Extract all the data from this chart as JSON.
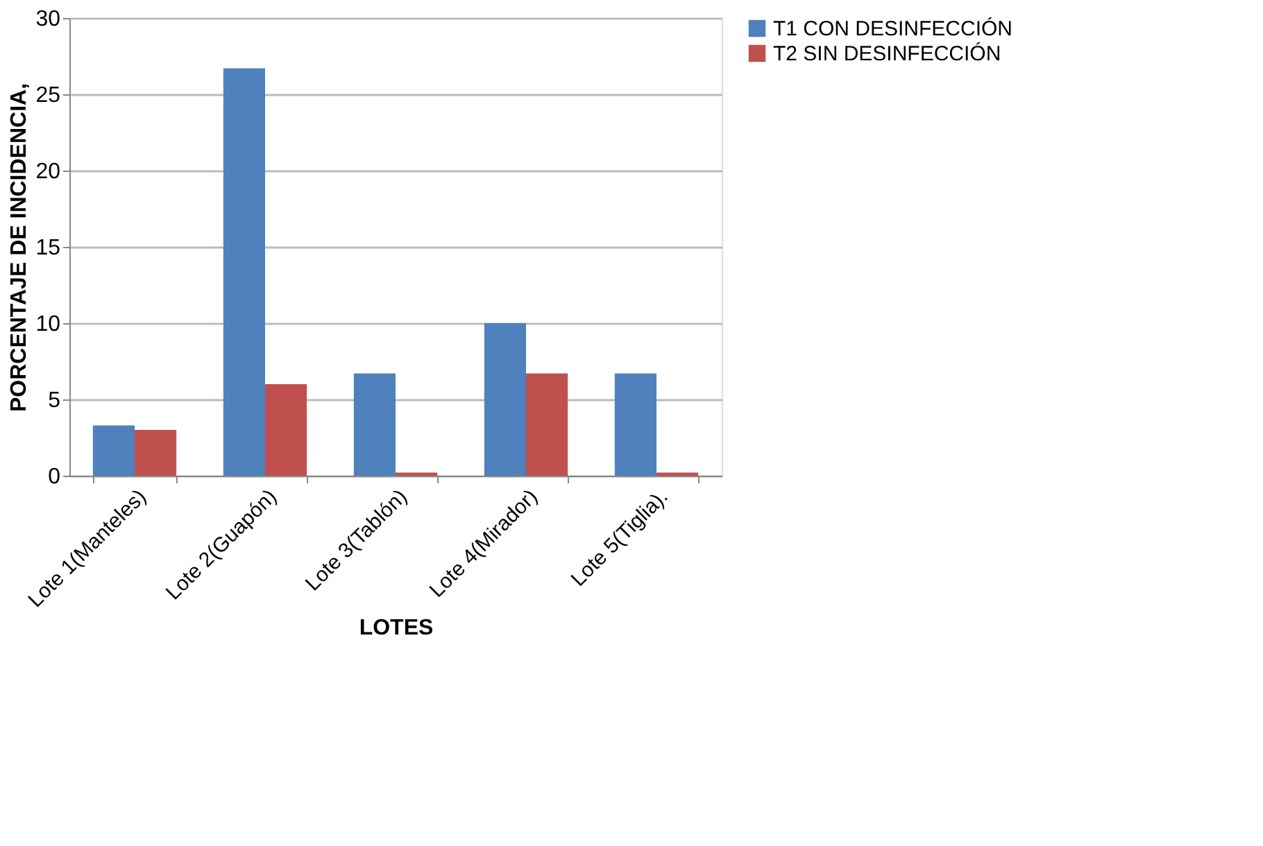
{
  "chart_data": {
    "type": "bar",
    "xlabel": "LOTES",
    "ylabel": "PORCENTAJE DE INCIDENCIA,",
    "categories": [
      "Lote 1(Manteles)",
      "Lote 2(Guapón)",
      "Lote 3(Tablón)",
      "Lote 4(Mirador)",
      "Lote 5(Tiglia)."
    ],
    "series": [
      {
        "name": "T1 CON DESINFECCIÓN",
        "color": "#4f81bd",
        "values": [
          3.3,
          26.7,
          6.7,
          10,
          6.7
        ]
      },
      {
        "name": "T2 SIN DESINFECCIÓN",
        "color": "#c0504d",
        "values": [
          3,
          6,
          0.2,
          6.7,
          0.2
        ]
      }
    ],
    "ylim": [
      0,
      30
    ],
    "yticks": [
      0,
      5,
      10,
      15,
      20,
      25,
      30
    ],
    "grid": "y",
    "legend": "right"
  }
}
